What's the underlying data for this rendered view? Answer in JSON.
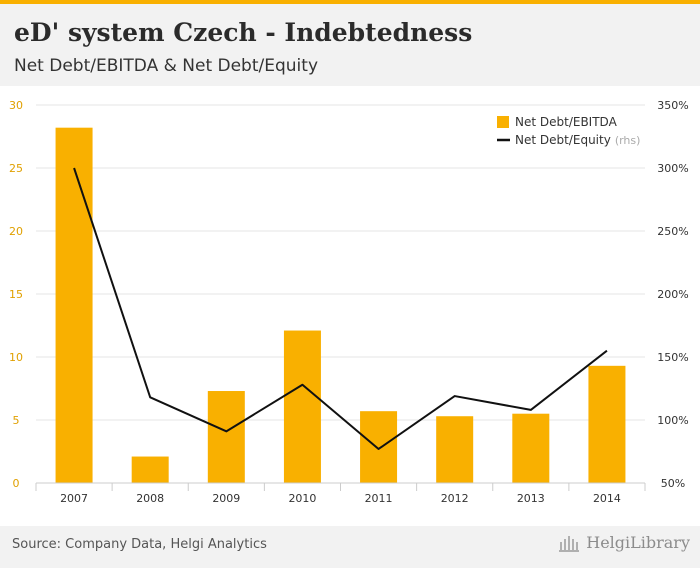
{
  "title": "eD' system Czech - Indebtedness",
  "subtitle": "Net Debt/EBITDA & Net Debt/Equity",
  "source": "Source: Company Data, Helgi Analytics",
  "brand": "HelgiLibrary",
  "colors": {
    "bar": "#f9b000",
    "line": "#111111",
    "left_axis": "#e0a000",
    "grid": "#e6e6e6",
    "header_bg": "#f2f2f2"
  },
  "chart_data": {
    "type": "bar",
    "categories": [
      "2007",
      "2008",
      "2009",
      "2010",
      "2011",
      "2012",
      "2013",
      "2014"
    ],
    "series": [
      {
        "name": "Net Debt/EBITDA",
        "type": "bar",
        "axis": "left",
        "values": [
          28.2,
          2.1,
          7.3,
          12.1,
          5.7,
          5.3,
          5.5,
          9.3
        ]
      },
      {
        "name": "Net Debt/Equity",
        "suffix": "(rhs)",
        "type": "line",
        "axis": "right",
        "values": [
          300,
          118,
          91,
          128,
          77,
          119,
          108,
          155
        ]
      }
    ],
    "y_left": {
      "min": 0,
      "max": 30,
      "ticks": [
        0,
        5,
        10,
        15,
        20,
        25,
        30
      ]
    },
    "y_right": {
      "min": 50,
      "max": 350,
      "ticks": [
        50,
        100,
        150,
        200,
        250,
        300,
        350
      ],
      "unit": "%"
    },
    "legend": {
      "position": "top-right"
    },
    "grid": true
  }
}
